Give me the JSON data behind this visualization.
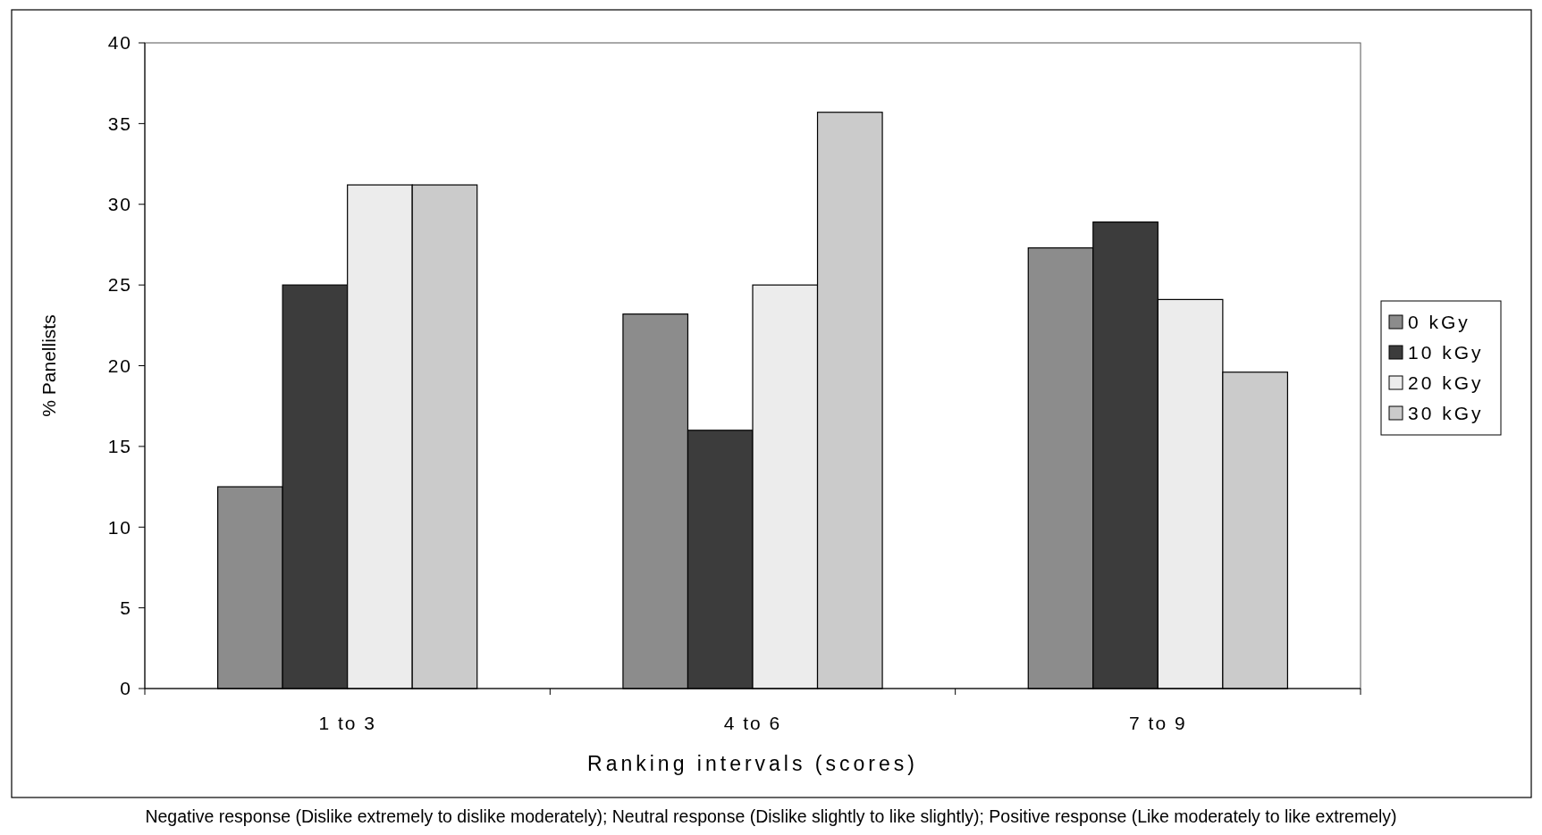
{
  "chart_data": {
    "type": "bar",
    "xlabel": "Ranking intervals (scores)",
    "ylabel": "% Panellists",
    "categories": [
      "1 to 3",
      "4 to 6",
      "7 to 9"
    ],
    "series": [
      {
        "name": "0 kGy",
        "color": "#8c8c8c",
        "values": [
          12.5,
          23.2,
          27.3
        ]
      },
      {
        "name": "10 kGy",
        "color": "#3c3c3c",
        "values": [
          25,
          16,
          28.9
        ]
      },
      {
        "name": "20 kGy",
        "color": "#ececec",
        "values": [
          31.2,
          25,
          24.1
        ]
      },
      {
        "name": "30 kGy",
        "color": "#cbcbcb",
        "values": [
          31.2,
          35.7,
          19.6
        ]
      }
    ],
    "ylim": [
      0,
      40
    ],
    "yticks": [
      0,
      5,
      10,
      15,
      20,
      25,
      30,
      35,
      40
    ],
    "grid": false,
    "legend": "right",
    "annotations": [
      "Negative response (Dislike extremely to dislike moderately); Neutral response (Dislike slightly to like slightly); Positive response (Like moderately to like extremely)"
    ]
  }
}
